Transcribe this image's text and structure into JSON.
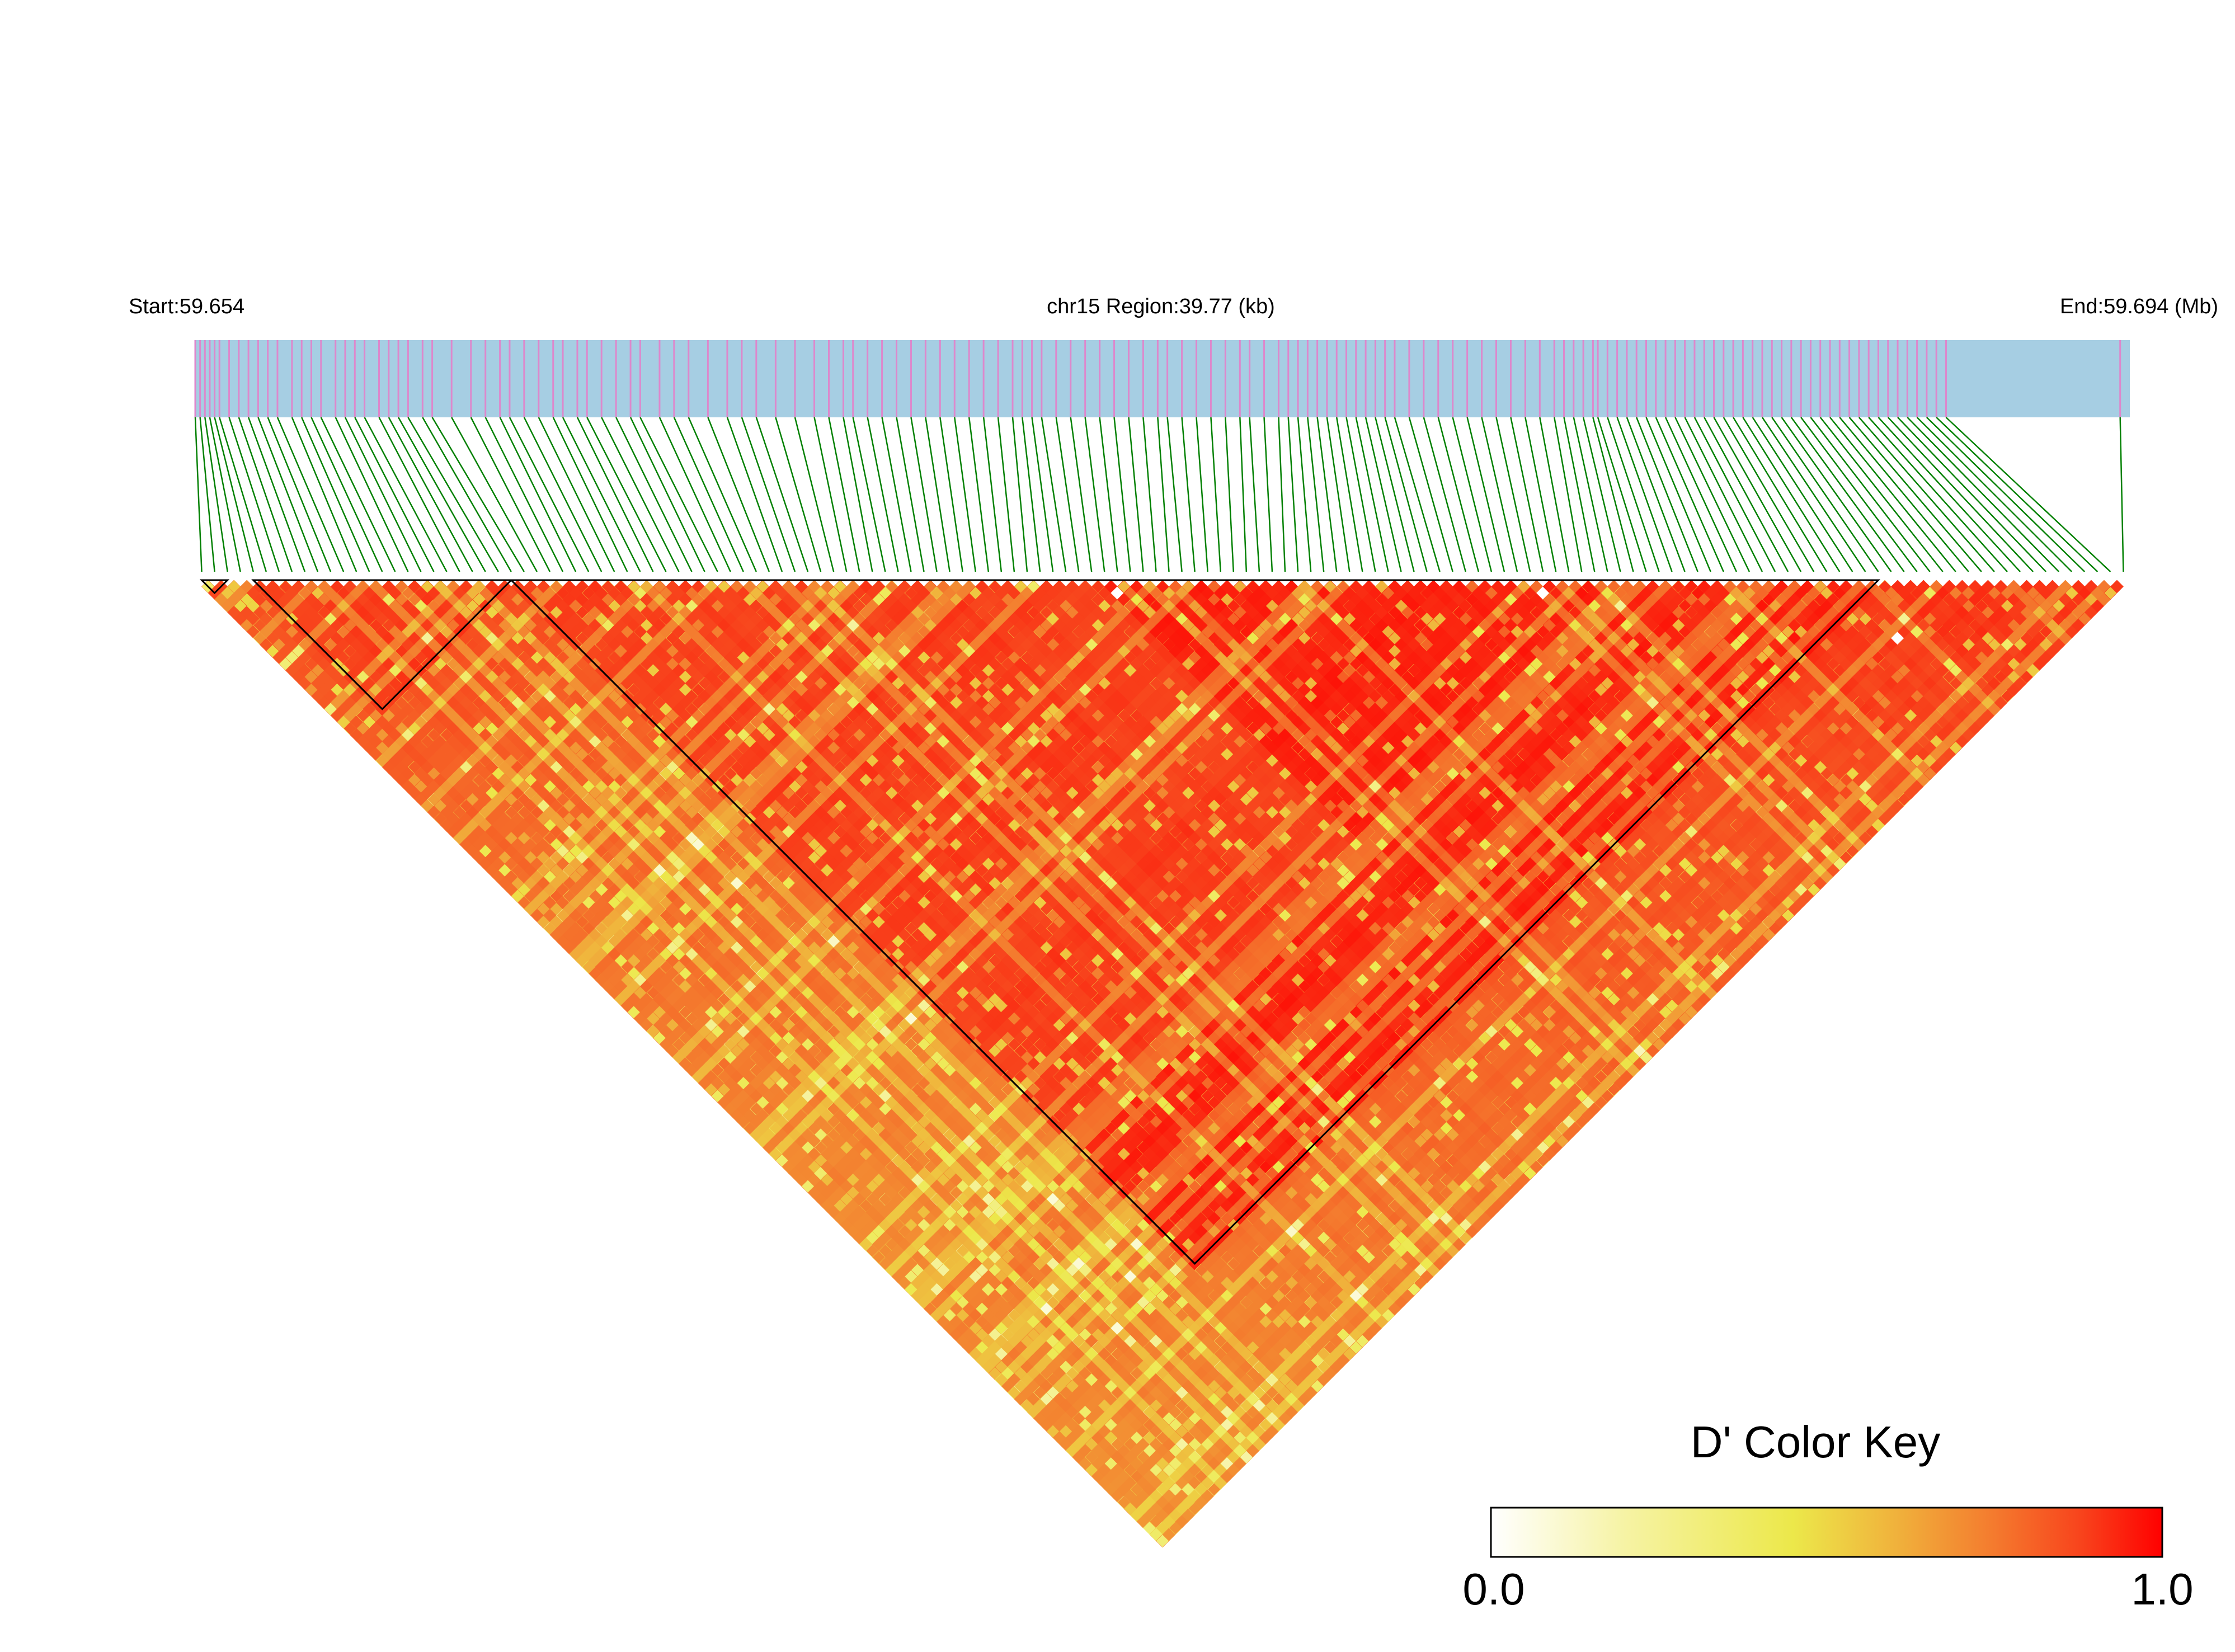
{
  "header": {
    "start_label": "Start:59.654",
    "region_label": "chr15 Region:39.77 (kb)",
    "end_label": "End:59.694 (Mb)"
  },
  "legend": {
    "title": "D' Color Key",
    "min_label": "0.0",
    "max_label": "1.0",
    "stops": [
      "#ffffff",
      "#f4f08a",
      "#ece84a",
      "#f0b33c",
      "#f47a2e",
      "#f8431c",
      "#ff0000"
    ]
  },
  "colors": {
    "snp_bar": "#a6cee3",
    "snp_marker": "#dd88cc",
    "connector": "#008000",
    "high_ld": "#ff0000",
    "block_outline": "#000000"
  },
  "chart_data": {
    "type": "heatmap",
    "measure": "D'",
    "chromosome": "chr15",
    "region_start_mb": 59.654,
    "region_end_mb": 59.694,
    "region_length_kb": 39.77,
    "snp_count": 150,
    "color_range": [
      0.0,
      1.0
    ],
    "ld_blocks_snp_index": [
      [
        0,
        2
      ],
      [
        4,
        24
      ],
      [
        24,
        130
      ]
    ],
    "snp_positions_mb": [
      59.654,
      59.6541,
      59.6542,
      59.6543,
      59.6544,
      59.6545,
      59.6547,
      59.6549,
      59.6551,
      59.6553,
      59.6555,
      59.6557,
      59.656,
      59.6562,
      59.6564,
      59.6566,
      59.6569,
      59.6571,
      59.6573,
      59.6575,
      59.6578,
      59.658,
      59.6582,
      59.6584,
      59.6587,
      59.6589,
      59.6593,
      59.6597,
      59.66,
      59.6603,
      59.6605,
      59.6608,
      59.6611,
      59.6614,
      59.6616,
      59.6619,
      59.6621,
      59.6624,
      59.6627,
      59.663,
      59.6632,
      59.6636,
      59.6639,
      59.6642,
      59.6646,
      59.665,
      59.6653,
      59.6656,
      59.666,
      59.6664,
      59.6668,
      59.6671,
      59.6674,
      59.6676,
      59.6679,
      59.6682,
      59.6685,
      59.6688,
      59.6691,
      59.6694,
      59.6697,
      59.67,
      59.6703,
      59.6706,
      59.6709,
      59.6711,
      59.6713,
      59.6715,
      59.6718,
      59.6721,
      59.6724,
      59.6727,
      59.673,
      59.6733,
      59.6736,
      59.6739,
      59.6741,
      59.6744,
      59.6747,
      59.675,
      59.6753,
      59.6756,
      59.6758,
      59.6761,
      59.6764,
      59.6766,
      59.6768,
      59.677,
      59.6772,
      59.6774,
      59.6776,
      59.6778,
      59.678,
      59.6782,
      59.6784,
      59.6786,
      59.6788,
      59.6791,
      59.6794,
      59.6797,
      59.68,
      59.6803,
      59.6806,
      59.6809,
      59.6812,
      59.6815,
      59.6818,
      59.6821,
      59.6823,
      59.6825,
      59.6827,
      59.6829,
      59.683,
      59.6832,
      59.6834,
      59.6836,
      59.6838,
      59.684,
      59.6842,
      59.6844,
      59.6846,
      59.6848,
      59.685,
      59.6852,
      59.6854,
      59.6856,
      59.6858,
      59.686,
      59.6862,
      59.6864,
      59.6866,
      59.6868,
      59.687,
      59.6872,
      59.6874,
      59.6876,
      59.6878,
      59.688,
      59.6882,
      59.6884,
      59.6886,
      59.6888,
      59.689,
      59.6892,
      59.6894,
      59.6896,
      59.6898,
      59.69,
      59.6902,
      59.6938
    ]
  }
}
